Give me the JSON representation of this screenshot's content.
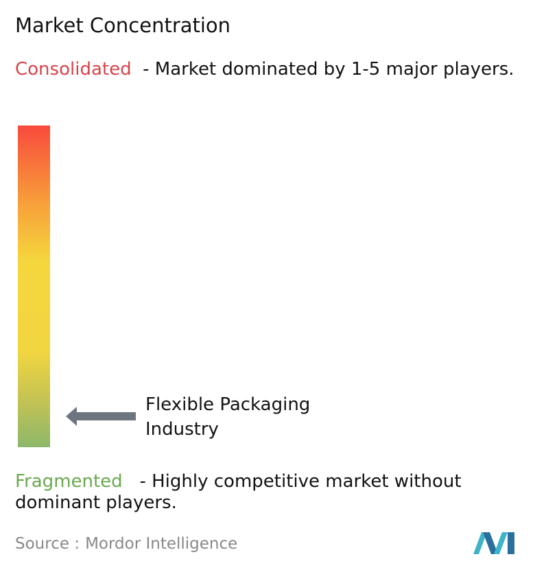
{
  "title": "Market Concentration",
  "consolidated": {
    "label": "Consolidated",
    "description": "- Market dominated by 1-5 major players."
  },
  "marker": {
    "label": "Flexible Packaging Industry"
  },
  "fragmented": {
    "label": "Fragmented",
    "description": "- Highly competitive market without dominant players."
  },
  "source": {
    "prefix": "Source :",
    "name": "Mordor Intelligence"
  }
}
